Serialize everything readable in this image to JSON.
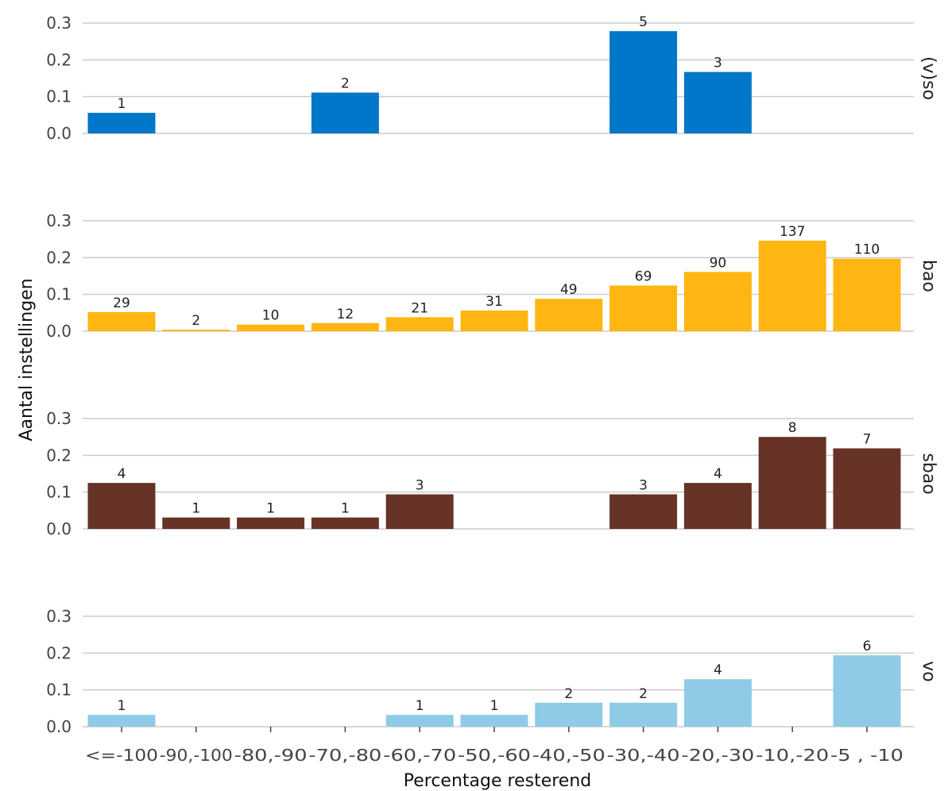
{
  "chart_data": {
    "type": "bar",
    "xlabel": "Percentage resterend",
    "ylabel": "Aantal instellingen",
    "ylim": [
      0,
      0.3
    ],
    "yticks": [
      "0.0",
      "0.1",
      "0.2",
      "0.3"
    ],
    "grid": true,
    "categories": [
      "<=-100",
      "-90,-100",
      "-80,-90",
      "-70,-80",
      "-60,-70",
      "-50,-60",
      "-40,-50",
      "-30,-40",
      "-20,-30",
      "-10,-20",
      "-5 , -10"
    ],
    "panels": [
      {
        "name": "(v)so",
        "color": "#0077c8",
        "values": [
          0.056,
          null,
          null,
          0.111,
          null,
          null,
          null,
          0.278,
          0.167,
          null,
          null
        ],
        "labels": [
          "1",
          null,
          null,
          "2",
          null,
          null,
          null,
          "5",
          "3",
          null,
          null
        ]
      },
      {
        "name": "bao",
        "color": "#ffb612",
        "values": [
          0.052,
          0.004,
          0.018,
          0.022,
          0.038,
          0.056,
          0.088,
          0.124,
          0.161,
          0.246,
          0.197
        ],
        "labels": [
          "29",
          "2",
          "10",
          "12",
          "21",
          "31",
          "49",
          "69",
          "90",
          "137",
          "110"
        ]
      },
      {
        "name": "sbao",
        "color": "#673327",
        "values": [
          0.125,
          0.031,
          0.031,
          0.031,
          0.094,
          null,
          null,
          0.094,
          0.125,
          0.25,
          0.219
        ],
        "labels": [
          "4",
          "1",
          "1",
          "1",
          "3",
          null,
          null,
          "3",
          "4",
          "8",
          "7"
        ]
      },
      {
        "name": "vo",
        "color": "#8fcae7",
        "values": [
          0.032,
          null,
          null,
          null,
          0.032,
          0.032,
          0.065,
          0.065,
          0.129,
          null,
          0.194
        ],
        "labels": [
          "1",
          null,
          null,
          null,
          "1",
          "1",
          "2",
          "2",
          "4",
          null,
          "6"
        ]
      }
    ]
  }
}
